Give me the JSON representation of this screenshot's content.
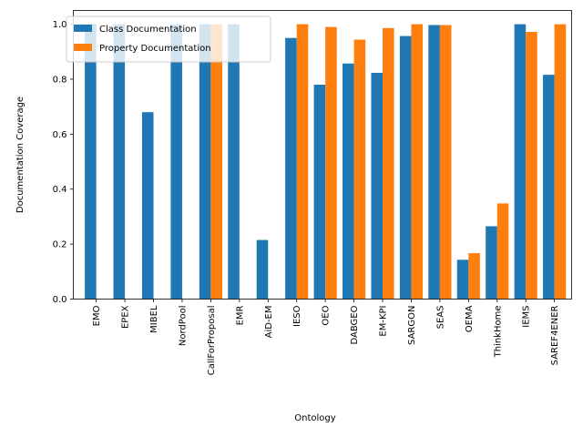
{
  "chart_data": {
    "type": "bar",
    "title": "",
    "xlabel": "Ontology",
    "ylabel": "Documentation Coverage",
    "ylim": [
      0,
      1.05
    ],
    "yticks": [
      0.0,
      0.2,
      0.4,
      0.6,
      0.8,
      1.0
    ],
    "ytick_labels": [
      "0.0",
      "0.2",
      "0.4",
      "0.6",
      "0.8",
      "1.0"
    ],
    "grid": false,
    "legend_position": "top-left",
    "categories": [
      "EMO",
      "EPEX",
      "MIBEL",
      "NordPool",
      "CallForProposal",
      "EMR",
      "AiD-EM",
      "IESO",
      "OEO",
      "DABGEO",
      "EM-KPI",
      "SARGON",
      "SEAS",
      "OEMA",
      "ThinkHome",
      "IEMS",
      "SAREF4ENER"
    ],
    "series": [
      {
        "name": "Class Documentation",
        "color": "#1f77b4",
        "values": [
          1.0,
          1.0,
          0.68,
          1.0,
          1.0,
          1.0,
          0.215,
          0.95,
          0.78,
          0.857,
          0.823,
          0.957,
          0.997,
          0.143,
          0.265,
          1.0,
          0.816
        ]
      },
      {
        "name": "Property Documentation",
        "color": "#ff7f0e",
        "values": [
          0,
          0,
          0,
          0,
          1.0,
          0,
          0,
          1.0,
          0.99,
          0.944,
          0.986,
          1.0,
          0.997,
          0.167,
          0.348,
          0.972,
          1.0
        ]
      }
    ]
  }
}
